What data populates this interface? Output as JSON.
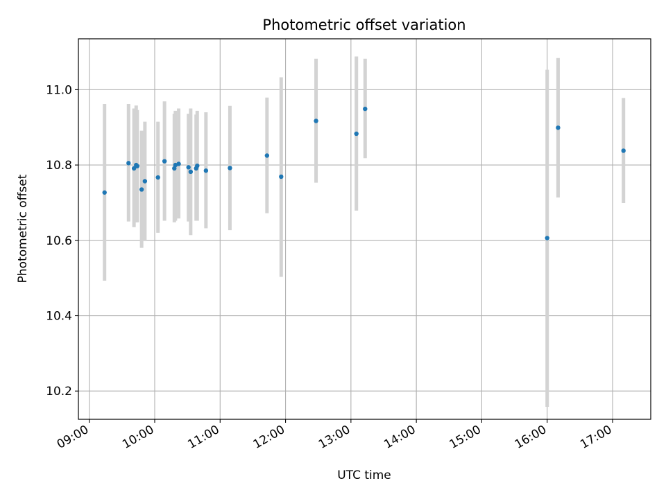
{
  "chart_data": {
    "type": "scatter",
    "title": "Photometric offset variation",
    "xlabel": "UTC time",
    "ylabel": "Photometric offset",
    "x_ticks": [
      "09:00",
      "10:00",
      "11:00",
      "12:00",
      "13:00",
      "14:00",
      "15:00",
      "16:00",
      "17:00"
    ],
    "y_ticks": [
      "10.2",
      "10.4",
      "10.6",
      "10.8",
      "11.0"
    ],
    "x_range": [
      "08:50",
      "17:35"
    ],
    "ylim": [
      10.125,
      11.135
    ],
    "grid": true,
    "point_color": "#1f77b4",
    "errorbar_color": "#d3d3d3",
    "points": [
      {
        "x": "09:14",
        "y": 10.727,
        "err_low": 10.493,
        "err_high": 10.962
      },
      {
        "x": "09:36",
        "y": 10.805,
        "err_low": 10.65,
        "err_high": 10.962
      },
      {
        "x": "09:41",
        "y": 10.791,
        "err_low": 10.635,
        "err_high": 10.95
      },
      {
        "x": "09:43",
        "y": 10.8,
        "err_low": 10.648,
        "err_high": 10.958
      },
      {
        "x": "09:44",
        "y": 10.797,
        "err_low": 10.648,
        "err_high": 10.946
      },
      {
        "x": "09:48",
        "y": 10.735,
        "err_low": 10.58,
        "err_high": 10.891
      },
      {
        "x": "09:51",
        "y": 10.757,
        "err_low": 10.598,
        "err_high": 10.915
      },
      {
        "x": "10:03",
        "y": 10.767,
        "err_low": 10.62,
        "err_high": 10.915
      },
      {
        "x": "10:09",
        "y": 10.81,
        "err_low": 10.652,
        "err_high": 10.969
      },
      {
        "x": "10:18",
        "y": 10.791,
        "err_low": 10.648,
        "err_high": 10.936
      },
      {
        "x": "10:19",
        "y": 10.8,
        "err_low": 10.652,
        "err_high": 10.944
      },
      {
        "x": "10:22",
        "y": 10.803,
        "err_low": 10.658,
        "err_high": 10.95
      },
      {
        "x": "10:31",
        "y": 10.794,
        "err_low": 10.65,
        "err_high": 10.936
      },
      {
        "x": "10:33",
        "y": 10.782,
        "err_low": 10.614,
        "err_high": 10.95
      },
      {
        "x": "10:38",
        "y": 10.791,
        "err_low": 10.652,
        "err_high": 10.934
      },
      {
        "x": "10:39",
        "y": 10.798,
        "err_low": 10.652,
        "err_high": 10.944
      },
      {
        "x": "10:47",
        "y": 10.785,
        "err_low": 10.632,
        "err_high": 10.94
      },
      {
        "x": "11:09",
        "y": 10.792,
        "err_low": 10.627,
        "err_high": 10.957
      },
      {
        "x": "11:43",
        "y": 10.825,
        "err_low": 10.672,
        "err_high": 10.979
      },
      {
        "x": "11:56",
        "y": 10.769,
        "err_low": 10.503,
        "err_high": 11.033
      },
      {
        "x": "12:28",
        "y": 10.917,
        "err_low": 10.753,
        "err_high": 11.082
      },
      {
        "x": "13:05",
        "y": 10.883,
        "err_low": 10.679,
        "err_high": 11.088
      },
      {
        "x": "13:13",
        "y": 10.949,
        "err_low": 10.818,
        "err_high": 11.082
      },
      {
        "x": "16:00",
        "y": 10.606,
        "err_low": 10.158,
        "err_high": 11.053
      },
      {
        "x": "16:10",
        "y": 10.899,
        "err_low": 10.714,
        "err_high": 11.084
      },
      {
        "x": "17:10",
        "y": 10.838,
        "err_low": 10.699,
        "err_high": 10.978
      }
    ]
  }
}
